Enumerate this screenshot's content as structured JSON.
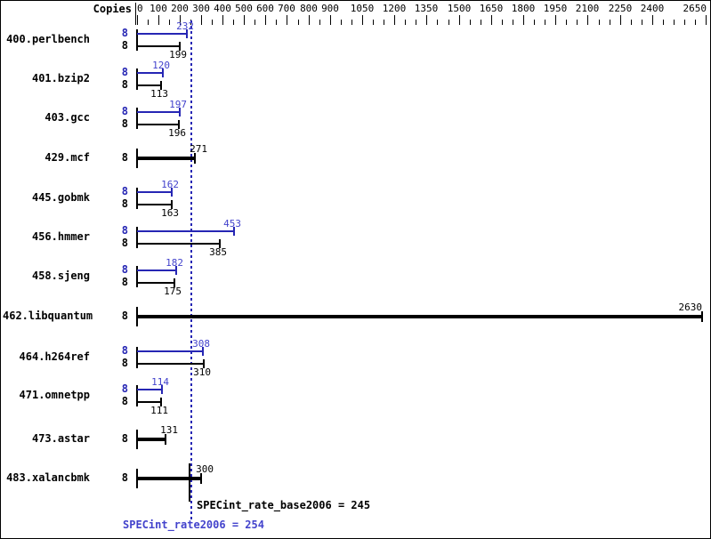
{
  "copies_header": "Copies",
  "colors": {
    "peak_blue": "#2626b4",
    "peak_text_blue": "#4343cc",
    "base_black": "#000000"
  },
  "chart_data": {
    "type": "bar",
    "orientation": "horizontal",
    "title": "",
    "xlabel": "",
    "ylabel": "Copies",
    "xlim": [
      0,
      2650
    ],
    "grid": false,
    "x_major_ticks": [
      0,
      100,
      200,
      300,
      400,
      500,
      600,
      700,
      800,
      900,
      1050,
      1200,
      1350,
      1500,
      1650,
      1800,
      1950,
      2100,
      2250,
      2400,
      2650
    ],
    "x_minor_tick_step": 50,
    "categories": [
      "400.perlbench",
      "401.bzip2",
      "403.gcc",
      "429.mcf",
      "445.gobmk",
      "456.hmmer",
      "458.sjeng",
      "462.libquantum",
      "464.h264ref",
      "471.omnetpp",
      "473.astar",
      "483.xalancbmk"
    ],
    "series": [
      {
        "name": "SPECint_rate2006 (peak, blue)",
        "values": [
          232,
          120,
          197,
          271,
          162,
          453,
          182,
          2630,
          308,
          114,
          131,
          300
        ]
      },
      {
        "name": "SPECint_rate_base2006 (base, black)",
        "values": [
          199,
          113,
          196,
          271,
          163,
          385,
          175,
          2630,
          310,
          111,
          131,
          300
        ]
      }
    ],
    "rows": [
      {
        "benchmark": "400.perlbench",
        "copies": 8,
        "peak": 232,
        "base": 199,
        "single": false
      },
      {
        "benchmark": "401.bzip2",
        "copies": 8,
        "peak": 120,
        "base": 113,
        "single": false
      },
      {
        "benchmark": "403.gcc",
        "copies": 8,
        "peak": 197,
        "base": 196,
        "single": false
      },
      {
        "benchmark": "429.mcf",
        "copies": 8,
        "peak": 271,
        "base": 271,
        "single": true
      },
      {
        "benchmark": "445.gobmk",
        "copies": 8,
        "peak": 162,
        "base": 163,
        "single": false
      },
      {
        "benchmark": "456.hmmer",
        "copies": 8,
        "peak": 453,
        "base": 385,
        "single": false
      },
      {
        "benchmark": "458.sjeng",
        "copies": 8,
        "peak": 182,
        "base": 175,
        "single": false
      },
      {
        "benchmark": "462.libquantum",
        "copies": 8,
        "peak": 2630,
        "base": 2630,
        "single": true
      },
      {
        "benchmark": "464.h264ref",
        "copies": 8,
        "peak": 308,
        "base": 310,
        "single": false
      },
      {
        "benchmark": "471.omnetpp",
        "copies": 8,
        "peak": 114,
        "base": 111,
        "single": false
      },
      {
        "benchmark": "473.astar",
        "copies": 8,
        "peak": 131,
        "base": 131,
        "single": true
      },
      {
        "benchmark": "483.xalancbmk",
        "copies": 8,
        "peak": 300,
        "base": 300,
        "single": true
      }
    ]
  },
  "summary": {
    "base_metric": "SPECint_rate_base2006",
    "base_value": 245,
    "base_text": "SPECint_rate_base2006 = 245",
    "peak_metric": "SPECint_rate2006",
    "peak_value": 254,
    "peak_text": "SPECint_rate2006 = 254"
  }
}
